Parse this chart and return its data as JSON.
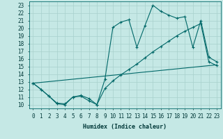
{
  "xlabel": "Humidex (Indice chaleur)",
  "bg_color": "#c5e8e5",
  "line_color": "#006868",
  "grid_color": "#a8d0cc",
  "xlim": [
    -0.5,
    23.5
  ],
  "ylim": [
    9.5,
    23.5
  ],
  "yticks": [
    10,
    11,
    12,
    13,
    14,
    15,
    16,
    17,
    18,
    19,
    20,
    21,
    22,
    23
  ],
  "xticks": [
    0,
    1,
    2,
    3,
    4,
    5,
    6,
    7,
    8,
    9,
    10,
    11,
    12,
    13,
    14,
    15,
    16,
    17,
    18,
    19,
    20,
    21,
    22,
    23
  ],
  "line1_x": [
    0,
    1,
    2,
    3,
    4,
    5,
    6,
    7,
    8,
    9,
    10,
    11,
    12,
    13,
    14,
    15,
    16,
    17,
    18,
    19,
    20,
    21,
    22,
    23
  ],
  "line1_y": [
    12.8,
    12.0,
    11.1,
    10.1,
    10.0,
    11.0,
    11.1,
    10.5,
    10.0,
    13.3,
    20.1,
    20.8,
    21.1,
    17.5,
    20.3,
    23.0,
    22.2,
    21.7,
    21.3,
    21.5,
    17.5,
    21.0,
    16.2,
    15.6
  ],
  "line2_x": [
    0,
    1,
    2,
    3,
    4,
    5,
    6,
    7,
    8,
    9,
    10,
    11,
    12,
    13,
    14,
    15,
    16,
    17,
    18,
    19,
    20,
    21,
    22,
    23
  ],
  "line2_y": [
    12.8,
    12.0,
    11.1,
    10.2,
    10.1,
    11.0,
    11.2,
    10.8,
    10.0,
    12.1,
    13.1,
    13.9,
    14.6,
    15.3,
    16.1,
    16.9,
    17.6,
    18.3,
    19.0,
    19.6,
    20.1,
    20.6,
    15.6,
    15.1
  ],
  "line3_x": [
    0,
    23
  ],
  "line3_y": [
    12.8,
    15.2
  ]
}
